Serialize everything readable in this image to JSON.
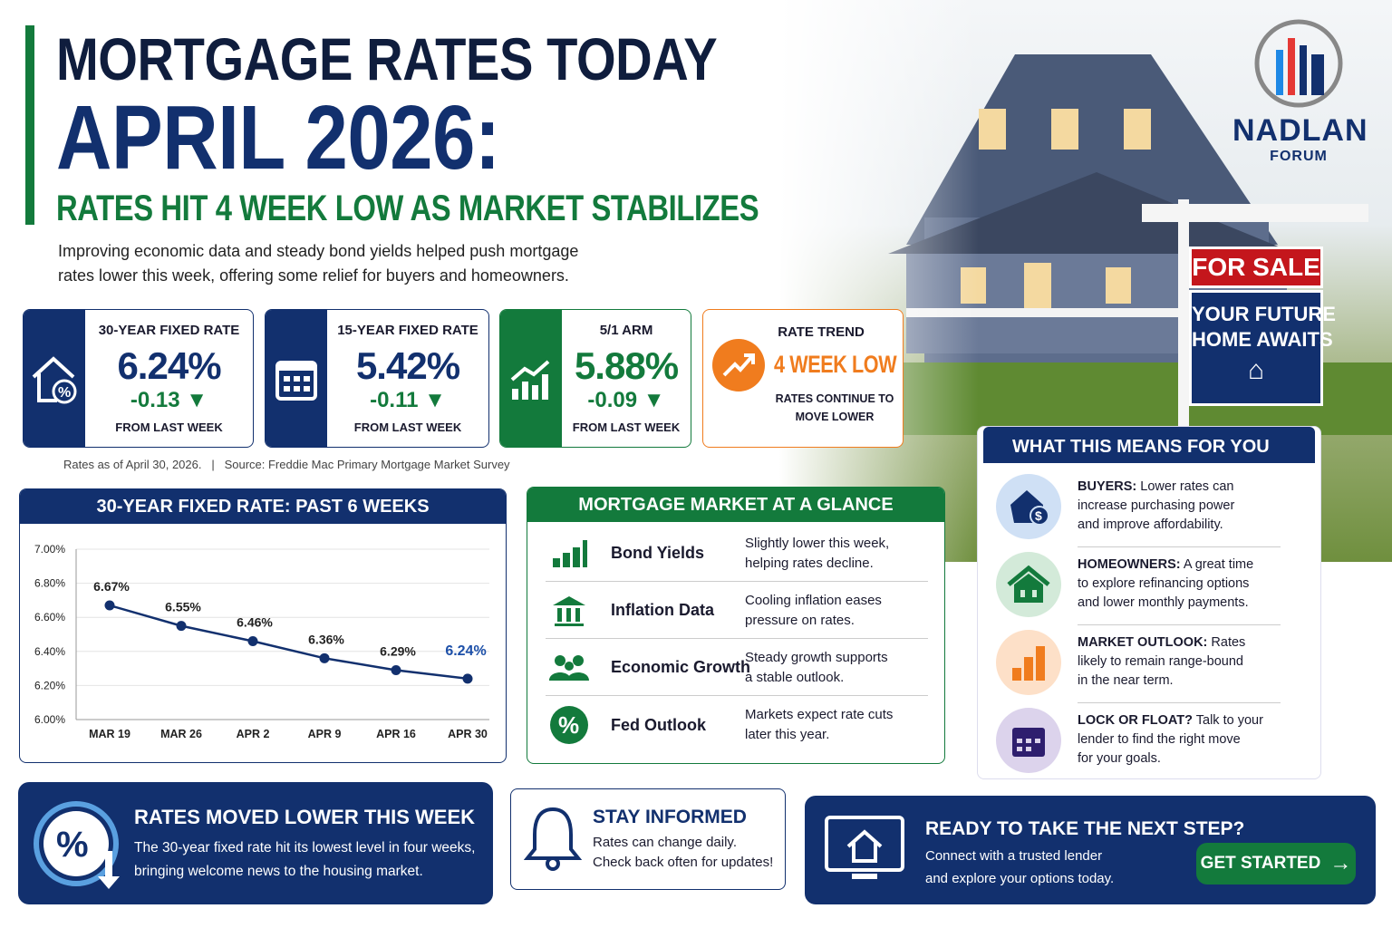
{
  "header": {
    "line1": "MORTGAGE RATES TODAY",
    "line2": "APRIL 2026:",
    "line3": "RATES HIT 4 WEEK LOW AS MARKET STABILIZES",
    "intro": "Improving economic data and steady bond yields helped push mortgage rates lower this week, offering some relief for buyers and homeowners."
  },
  "logo": {
    "name": "NADLAN",
    "sub": "FORUM"
  },
  "sign": {
    "for_sale": "FOR SALE",
    "line1": "YOUR FUTURE",
    "line2": "HOME AWAITS"
  },
  "rates": [
    {
      "title": "30-YEAR FIXED RATE",
      "value": "6.24%",
      "change": "-0.13",
      "from": "FROM LAST WEEK",
      "icon": "house-percent-icon"
    },
    {
      "title": "15-YEAR FIXED RATE",
      "value": "5.42%",
      "change": "-0.11",
      "from": "FROM LAST WEEK",
      "icon": "calendar-icon"
    },
    {
      "title": "5/1 ARM",
      "value": "5.88%",
      "change": "-0.09",
      "from": "FROM LAST WEEK",
      "icon": "chart-up-icon"
    }
  ],
  "trend": {
    "title": "RATE TREND",
    "value": "4 WEEK LOW",
    "line1": "RATES CONTINUE TO",
    "line2": "MOVE LOWER"
  },
  "source": {
    "asof": "Rates as of April 30, 2026.",
    "sep": "|",
    "text": "Source: Freddie Mac Primary Mortgage Market Survey"
  },
  "chart_data": {
    "type": "line",
    "title": "30-YEAR FIXED RATE: PAST 6 WEEKS",
    "categories": [
      "MAR 19",
      "MAR 26",
      "APR 2",
      "APR 9",
      "APR 16",
      "APR 30"
    ],
    "values": [
      6.67,
      6.55,
      6.46,
      6.36,
      6.29,
      6.24
    ],
    "labels": [
      "6.67%",
      "6.55%",
      "6.46%",
      "6.36%",
      "6.29%",
      "6.24%"
    ],
    "ylim": [
      6.0,
      7.0
    ],
    "yticks": [
      "7.00%",
      "6.80%",
      "6.60%",
      "6.40%",
      "6.20%",
      "6.00%"
    ],
    "grid": true,
    "color": "#12306e"
  },
  "glance": {
    "title": "MORTGAGE MARKET AT A GLANCE",
    "rows": [
      {
        "label": "Bond Yields",
        "d1": "Slightly lower this week,",
        "d2": "helping rates decline.",
        "icon": "bar-chart-icon"
      },
      {
        "label": "Inflation Data",
        "d1": "Cooling inflation eases",
        "d2": "pressure on rates.",
        "icon": "bank-icon"
      },
      {
        "label": "Economic Growth",
        "d1": "Steady growth supports",
        "d2": "a stable outlook.",
        "icon": "people-icon"
      },
      {
        "label": "Fed Outlook",
        "d1": "Markets expect rate cuts",
        "d2": "later this year.",
        "icon": "percent-icon"
      }
    ]
  },
  "means": {
    "title": "WHAT THIS MEANS FOR YOU",
    "rows": [
      {
        "head": "BUYERS:",
        "l1": " Lower rates can",
        "l2": "increase purchasing power",
        "l3": "and improve affordability.",
        "icon": "house-dollar-icon",
        "bg": "#cfe0f5"
      },
      {
        "head": "HOMEOWNERS:",
        "l1": " A great time",
        "l2": "to explore refinancing options",
        "l3": "and lower monthly payments.",
        "icon": "house-icon",
        "bg": "#d3ead9"
      },
      {
        "head": "MARKET OUTLOOK:",
        "l1": " Rates",
        "l2": "likely to remain range-bound",
        "l3": "in the near term.",
        "icon": "bar-chart-icon",
        "bg": "#fde0c8"
      },
      {
        "head": "LOCK OR FLOAT?",
        "l1": " Talk to your",
        "l2": "lender to find the right move",
        "l3": "for your goals.",
        "icon": "calendar-icon",
        "bg": "#dcd3ec"
      }
    ]
  },
  "footer": {
    "moved": {
      "title": "RATES MOVED LOWER THIS WEEK",
      "l1": "The 30-year fixed rate hit its lowest level in four weeks,",
      "l2": "bringing welcome news to the housing market."
    },
    "informed": {
      "title": "STAY INFORMED",
      "l1": "Rates can change daily.",
      "l2": "Check back often for updates!"
    },
    "next": {
      "title": "READY TO TAKE THE NEXT STEP?",
      "l1": "Connect with a trusted lender",
      "l2": "and explore your options today.",
      "button": "GET STARTED"
    }
  },
  "colors": {
    "navy": "#12306e",
    "green": "#137a3c",
    "orange": "#f07c1e",
    "red": "#c4161c"
  }
}
